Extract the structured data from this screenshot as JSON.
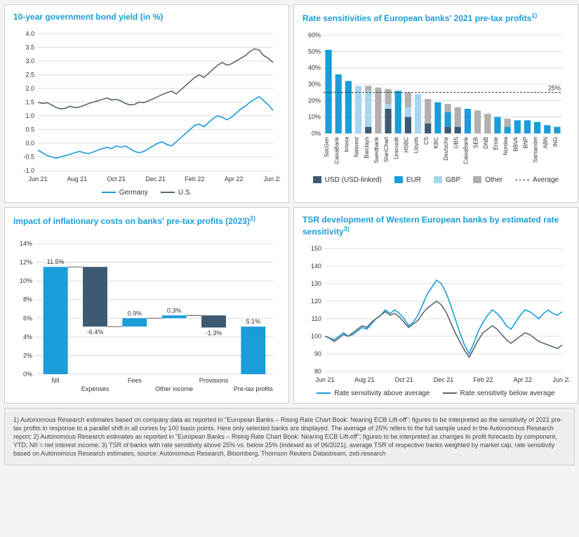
{
  "colors": {
    "accent": "#1a9dd9",
    "dark_line": "#5a6670",
    "light_blue": "#a8d5ef",
    "grey": "#b0b0b0",
    "dark_blue": "#3d5a73",
    "grid": "#d0d0d0",
    "text": "#333333"
  },
  "bond_yield": {
    "title": "10-year government bond yield (in %)",
    "type": "line",
    "ylim": [
      -1.0,
      4.0
    ],
    "ytick_step": 0.5,
    "x_labels": [
      "Jun 21",
      "Aug 21",
      "Oct 21",
      "Dec 21",
      "Feb 22",
      "Apr 22",
      "Jun 22"
    ],
    "series": [
      {
        "name": "Germany",
        "color": "#1a9dd9",
        "width": 1.6,
        "values": [
          -0.25,
          -0.35,
          -0.45,
          -0.5,
          -0.55,
          -0.5,
          -0.45,
          -0.4,
          -0.35,
          -0.3,
          -0.35,
          -0.38,
          -0.32,
          -0.25,
          -0.2,
          -0.15,
          -0.2,
          -0.1,
          -0.15,
          -0.1,
          -0.2,
          -0.3,
          -0.35,
          -0.3,
          -0.2,
          -0.1,
          0.0,
          0.05,
          -0.05,
          -0.1,
          0.05,
          0.2,
          0.35,
          0.5,
          0.65,
          0.7,
          0.6,
          0.75,
          0.9,
          1.0,
          0.95,
          0.85,
          0.95,
          1.1,
          1.25,
          1.35,
          1.5,
          1.6,
          1.7,
          1.55,
          1.4,
          1.2
        ]
      },
      {
        "name": "U.S.",
        "color": "#5a6670",
        "width": 1.6,
        "values": [
          1.5,
          1.45,
          1.48,
          1.4,
          1.3,
          1.25,
          1.28,
          1.35,
          1.3,
          1.32,
          1.38,
          1.45,
          1.5,
          1.55,
          1.6,
          1.65,
          1.58,
          1.6,
          1.55,
          1.45,
          1.4,
          1.42,
          1.5,
          1.48,
          1.55,
          1.62,
          1.7,
          1.78,
          1.85,
          1.9,
          1.8,
          1.95,
          2.1,
          2.25,
          2.4,
          2.5,
          2.4,
          2.55,
          2.7,
          2.85,
          2.95,
          2.85,
          2.9,
          3.0,
          3.1,
          3.2,
          3.35,
          3.45,
          3.4,
          3.2,
          3.1,
          2.95
        ]
      }
    ],
    "legend": [
      "Germany",
      "U.S."
    ]
  },
  "rate_sens": {
    "title": "Rate sensitivities of European banks' 2021 pre-tax profits",
    "title_sup": "1)",
    "type": "stacked-bar",
    "ylim": [
      0,
      60
    ],
    "ytick_step": 10,
    "average_line": 25,
    "average_label": "25%",
    "categories": [
      "SocGen",
      "CaixaBank",
      "Intesa",
      "Natwest",
      "Barclays",
      "Swedbank",
      "StanChart",
      "Unicredit",
      "HSBC",
      "Lloyds",
      "CS",
      "KBC",
      "Deutsche",
      "UBS",
      "CaixaBank",
      "SEB",
      "DNB",
      "Erste",
      "Nordea",
      "BBVA",
      "BNP",
      "Santander",
      "ABN",
      "ING"
    ],
    "stack_keys": [
      "USD",
      "EUR",
      "GBP",
      "Other"
    ],
    "stack_colors": {
      "USD": "#3d5a73",
      "EUR": "#1a9dd9",
      "GBP": "#a8d5ef",
      "Other": "#b0b0b0"
    },
    "rows": [
      {
        "USD": 0,
        "EUR": 51,
        "GBP": 0,
        "Other": 0
      },
      {
        "USD": 0,
        "EUR": 36,
        "GBP": 0,
        "Other": 0
      },
      {
        "USD": 0,
        "EUR": 32,
        "GBP": 0,
        "Other": 0
      },
      {
        "USD": 0,
        "EUR": 0,
        "GBP": 29,
        "Other": 0
      },
      {
        "USD": 4,
        "EUR": 0,
        "GBP": 22,
        "Other": 3
      },
      {
        "USD": 0,
        "EUR": 0,
        "GBP": 0,
        "Other": 28
      },
      {
        "USD": 15,
        "EUR": 0,
        "GBP": 3,
        "Other": 9
      },
      {
        "USD": 0,
        "EUR": 26,
        "GBP": 0,
        "Other": 0
      },
      {
        "USD": 10,
        "EUR": 0,
        "GBP": 6,
        "Other": 9
      },
      {
        "USD": 0,
        "EUR": 0,
        "GBP": 24,
        "Other": 0
      },
      {
        "USD": 6,
        "EUR": 0,
        "GBP": 0,
        "Other": 15
      },
      {
        "USD": 0,
        "EUR": 19,
        "GBP": 0,
        "Other": 0
      },
      {
        "USD": 4,
        "EUR": 9,
        "GBP": 0,
        "Other": 5
      },
      {
        "USD": 4,
        "EUR": 0,
        "GBP": 0,
        "Other": 12
      },
      {
        "USD": 0,
        "EUR": 15,
        "GBP": 0,
        "Other": 0
      },
      {
        "USD": 0,
        "EUR": 0,
        "GBP": 0,
        "Other": 14
      },
      {
        "USD": 0,
        "EUR": 0,
        "GBP": 0,
        "Other": 12
      },
      {
        "USD": 0,
        "EUR": 10,
        "GBP": 0,
        "Other": 0
      },
      {
        "USD": 0,
        "EUR": 4,
        "GBP": 0,
        "Other": 5
      },
      {
        "USD": 0,
        "EUR": 8,
        "GBP": 0,
        "Other": 0
      },
      {
        "USD": 0,
        "EUR": 8,
        "GBP": 0,
        "Other": 0
      },
      {
        "USD": 0,
        "EUR": 7,
        "GBP": 0,
        "Other": 0
      },
      {
        "USD": 0,
        "EUR": 5,
        "GBP": 0,
        "Other": 0
      },
      {
        "USD": 0,
        "EUR": 4,
        "GBP": 0,
        "Other": 0
      }
    ],
    "legend_items": [
      {
        "label": "USD (USD-linked)",
        "key": "USD"
      },
      {
        "label": "EUR",
        "key": "EUR"
      },
      {
        "label": "GBP",
        "key": "GBP"
      },
      {
        "label": "Other",
        "key": "Other"
      },
      {
        "label": "Average",
        "key": "avg"
      }
    ]
  },
  "waterfall": {
    "title": "Impact of inflationary costs on banks' pre-tax profits (2023)",
    "title_sup": "2)",
    "type": "waterfall",
    "ylim": [
      0,
      14
    ],
    "ytick_step": 2,
    "categories": [
      "NII",
      "Expenses",
      "Fees",
      "Other income",
      "Provisions",
      "Pre-tax profits"
    ],
    "bars": [
      {
        "label": "11.5%",
        "from": 0,
        "to": 11.5,
        "color": "#1a9dd9"
      },
      {
        "label": "-6.4%",
        "from": 11.5,
        "to": 5.1,
        "color": "#3d5a73"
      },
      {
        "label": "0.9%",
        "from": 5.1,
        "to": 6.0,
        "color": "#1a9dd9"
      },
      {
        "label": "0.3%",
        "from": 6.0,
        "to": 6.3,
        "color": "#1a9dd9"
      },
      {
        "label": "-1.3%",
        "from": 6.3,
        "to": 5.0,
        "color": "#3d5a73"
      },
      {
        "label": "5.1%",
        "from": 0,
        "to": 5.1,
        "color": "#1a9dd9"
      }
    ]
  },
  "tsr": {
    "title": "TSR development of Western European banks by estimated rate sensitivity",
    "title_sup": "3)",
    "type": "line",
    "ylim": [
      80,
      150
    ],
    "ytick_step": 10,
    "x_labels": [
      "Jun 21",
      "Aug 21",
      "Oct 21",
      "Dec 21",
      "Feb 22",
      "Apr 22",
      "Jun 22"
    ],
    "series": [
      {
        "name": "Rate sensitivity above average",
        "color": "#1a9dd9",
        "width": 1.6,
        "values": [
          100,
          99,
          98,
          100,
          102,
          100,
          101,
          103,
          105,
          104,
          107,
          110,
          112,
          115,
          113,
          115,
          113,
          110,
          106,
          108,
          112,
          118,
          124,
          128,
          132,
          130,
          125,
          118,
          110,
          102,
          95,
          90,
          96,
          103,
          108,
          112,
          115,
          113,
          110,
          106,
          104,
          108,
          112,
          115,
          114,
          112,
          110,
          113,
          115,
          113,
          112,
          114
        ]
      },
      {
        "name": "Rate sensitivity below average",
        "color": "#5a6670",
        "width": 1.6,
        "values": [
          100,
          99,
          97,
          99,
          101,
          100,
          102,
          104,
          106,
          105,
          108,
          110,
          112,
          114,
          112,
          113,
          111,
          108,
          105,
          107,
          109,
          113,
          116,
          118,
          120,
          118,
          114,
          108,
          102,
          97,
          92,
          88,
          93,
          98,
          102,
          104,
          106,
          104,
          101,
          98,
          96,
          98,
          100,
          102,
          101,
          99,
          97,
          96,
          95,
          94,
          93,
          95
        ]
      }
    ],
    "legend": [
      "Rate sensitivity above average",
      "Rate sensitivity below average"
    ]
  },
  "footnote_text": "1) Autonomous Research estimates based on company data as reported in \"European Banks – Rising Rate Chart Book: Nearing ECB Lift-off\"; figures to be interpreted as the sensitivity of 2021 pre-tax profits in response to a parallel shift in all curves by 100 basis points. Here only selected banks are displayed. The average of 25% refers to the full sample used in the Autonomous Research report; 2) Autonomous Research estimates as reported in \"European Banks – Rising Rate Chart Book: Nearing ECB Lift-off\"; figures to be interpreted as changes to profit forecasts by component, YTD, NII = net interest income; 3) TSR of banks with rate sensitivity above 25% vs. below 25% (indexed as of 06/2021), average TSR of respective banks weighted by market cap, rate sensitivity based on Autonomous Research estimates; source: Autonomous Research, Bloomberg, Thomson Reuters Datastream, zeb.research"
}
